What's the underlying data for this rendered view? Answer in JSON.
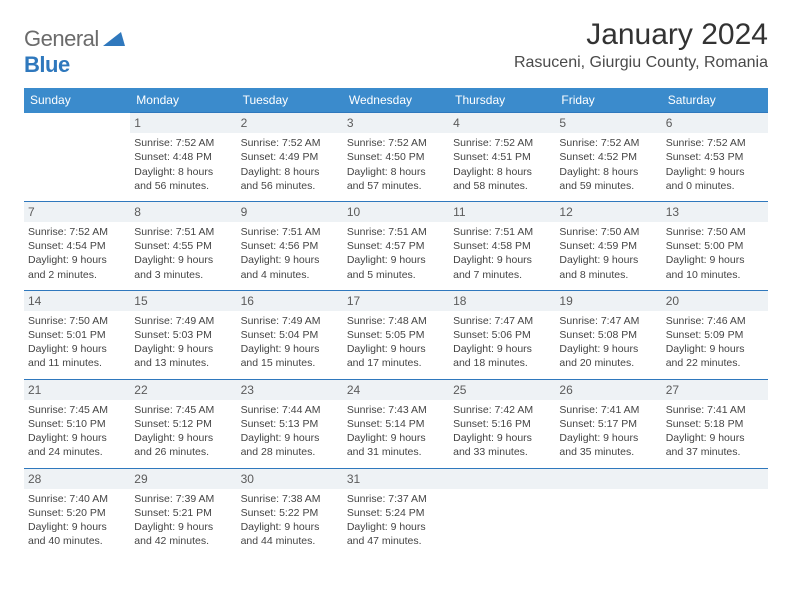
{
  "logo": {
    "general": "General",
    "blue": "Blue"
  },
  "title": "January 2024",
  "location": "Rasuceni, Giurgiu County, Romania",
  "colors": {
    "header_bg": "#3b8bcc",
    "header_fg": "#ffffff",
    "row_border": "#2f78bd",
    "daynum_bg": "#eef2f5",
    "logo_gray": "#6b6b6b",
    "logo_blue": "#2f78bd"
  },
  "day_headers": [
    "Sunday",
    "Monday",
    "Tuesday",
    "Wednesday",
    "Thursday",
    "Friday",
    "Saturday"
  ],
  "weeks": [
    [
      null,
      {
        "n": "1",
        "sr": "Sunrise: 7:52 AM",
        "ss": "Sunset: 4:48 PM",
        "d1": "Daylight: 8 hours",
        "d2": "and 56 minutes."
      },
      {
        "n": "2",
        "sr": "Sunrise: 7:52 AM",
        "ss": "Sunset: 4:49 PM",
        "d1": "Daylight: 8 hours",
        "d2": "and 56 minutes."
      },
      {
        "n": "3",
        "sr": "Sunrise: 7:52 AM",
        "ss": "Sunset: 4:50 PM",
        "d1": "Daylight: 8 hours",
        "d2": "and 57 minutes."
      },
      {
        "n": "4",
        "sr": "Sunrise: 7:52 AM",
        "ss": "Sunset: 4:51 PM",
        "d1": "Daylight: 8 hours",
        "d2": "and 58 minutes."
      },
      {
        "n": "5",
        "sr": "Sunrise: 7:52 AM",
        "ss": "Sunset: 4:52 PM",
        "d1": "Daylight: 8 hours",
        "d2": "and 59 minutes."
      },
      {
        "n": "6",
        "sr": "Sunrise: 7:52 AM",
        "ss": "Sunset: 4:53 PM",
        "d1": "Daylight: 9 hours",
        "d2": "and 0 minutes."
      }
    ],
    [
      {
        "n": "7",
        "sr": "Sunrise: 7:52 AM",
        "ss": "Sunset: 4:54 PM",
        "d1": "Daylight: 9 hours",
        "d2": "and 2 minutes."
      },
      {
        "n": "8",
        "sr": "Sunrise: 7:51 AM",
        "ss": "Sunset: 4:55 PM",
        "d1": "Daylight: 9 hours",
        "d2": "and 3 minutes."
      },
      {
        "n": "9",
        "sr": "Sunrise: 7:51 AM",
        "ss": "Sunset: 4:56 PM",
        "d1": "Daylight: 9 hours",
        "d2": "and 4 minutes."
      },
      {
        "n": "10",
        "sr": "Sunrise: 7:51 AM",
        "ss": "Sunset: 4:57 PM",
        "d1": "Daylight: 9 hours",
        "d2": "and 5 minutes."
      },
      {
        "n": "11",
        "sr": "Sunrise: 7:51 AM",
        "ss": "Sunset: 4:58 PM",
        "d1": "Daylight: 9 hours",
        "d2": "and 7 minutes."
      },
      {
        "n": "12",
        "sr": "Sunrise: 7:50 AM",
        "ss": "Sunset: 4:59 PM",
        "d1": "Daylight: 9 hours",
        "d2": "and 8 minutes."
      },
      {
        "n": "13",
        "sr": "Sunrise: 7:50 AM",
        "ss": "Sunset: 5:00 PM",
        "d1": "Daylight: 9 hours",
        "d2": "and 10 minutes."
      }
    ],
    [
      {
        "n": "14",
        "sr": "Sunrise: 7:50 AM",
        "ss": "Sunset: 5:01 PM",
        "d1": "Daylight: 9 hours",
        "d2": "and 11 minutes."
      },
      {
        "n": "15",
        "sr": "Sunrise: 7:49 AM",
        "ss": "Sunset: 5:03 PM",
        "d1": "Daylight: 9 hours",
        "d2": "and 13 minutes."
      },
      {
        "n": "16",
        "sr": "Sunrise: 7:49 AM",
        "ss": "Sunset: 5:04 PM",
        "d1": "Daylight: 9 hours",
        "d2": "and 15 minutes."
      },
      {
        "n": "17",
        "sr": "Sunrise: 7:48 AM",
        "ss": "Sunset: 5:05 PM",
        "d1": "Daylight: 9 hours",
        "d2": "and 17 minutes."
      },
      {
        "n": "18",
        "sr": "Sunrise: 7:47 AM",
        "ss": "Sunset: 5:06 PM",
        "d1": "Daylight: 9 hours",
        "d2": "and 18 minutes."
      },
      {
        "n": "19",
        "sr": "Sunrise: 7:47 AM",
        "ss": "Sunset: 5:08 PM",
        "d1": "Daylight: 9 hours",
        "d2": "and 20 minutes."
      },
      {
        "n": "20",
        "sr": "Sunrise: 7:46 AM",
        "ss": "Sunset: 5:09 PM",
        "d1": "Daylight: 9 hours",
        "d2": "and 22 minutes."
      }
    ],
    [
      {
        "n": "21",
        "sr": "Sunrise: 7:45 AM",
        "ss": "Sunset: 5:10 PM",
        "d1": "Daylight: 9 hours",
        "d2": "and 24 minutes."
      },
      {
        "n": "22",
        "sr": "Sunrise: 7:45 AM",
        "ss": "Sunset: 5:12 PM",
        "d1": "Daylight: 9 hours",
        "d2": "and 26 minutes."
      },
      {
        "n": "23",
        "sr": "Sunrise: 7:44 AM",
        "ss": "Sunset: 5:13 PM",
        "d1": "Daylight: 9 hours",
        "d2": "and 28 minutes."
      },
      {
        "n": "24",
        "sr": "Sunrise: 7:43 AM",
        "ss": "Sunset: 5:14 PM",
        "d1": "Daylight: 9 hours",
        "d2": "and 31 minutes."
      },
      {
        "n": "25",
        "sr": "Sunrise: 7:42 AM",
        "ss": "Sunset: 5:16 PM",
        "d1": "Daylight: 9 hours",
        "d2": "and 33 minutes."
      },
      {
        "n": "26",
        "sr": "Sunrise: 7:41 AM",
        "ss": "Sunset: 5:17 PM",
        "d1": "Daylight: 9 hours",
        "d2": "and 35 minutes."
      },
      {
        "n": "27",
        "sr": "Sunrise: 7:41 AM",
        "ss": "Sunset: 5:18 PM",
        "d1": "Daylight: 9 hours",
        "d2": "and 37 minutes."
      }
    ],
    [
      {
        "n": "28",
        "sr": "Sunrise: 7:40 AM",
        "ss": "Sunset: 5:20 PM",
        "d1": "Daylight: 9 hours",
        "d2": "and 40 minutes."
      },
      {
        "n": "29",
        "sr": "Sunrise: 7:39 AM",
        "ss": "Sunset: 5:21 PM",
        "d1": "Daylight: 9 hours",
        "d2": "and 42 minutes."
      },
      {
        "n": "30",
        "sr": "Sunrise: 7:38 AM",
        "ss": "Sunset: 5:22 PM",
        "d1": "Daylight: 9 hours",
        "d2": "and 44 minutes."
      },
      {
        "n": "31",
        "sr": "Sunrise: 7:37 AM",
        "ss": "Sunset: 5:24 PM",
        "d1": "Daylight: 9 hours",
        "d2": "and 47 minutes."
      },
      null,
      null,
      null
    ]
  ]
}
